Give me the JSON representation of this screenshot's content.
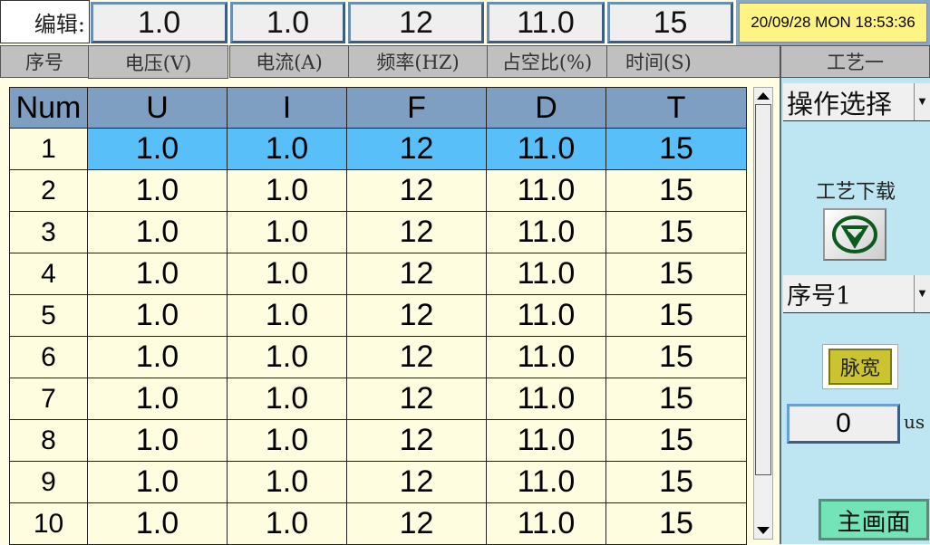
{
  "edit": {
    "label": "编辑:",
    "values": [
      "1.0",
      "1.0",
      "12",
      "11.0",
      "15"
    ]
  },
  "datetime": "20/09/28 MON 18:53:36",
  "headers": {
    "num": "序号",
    "u": "电压(V)",
    "i": "电流(A)",
    "f": "频率(HZ)",
    "d": "占空比(%)",
    "t": "时间(S)",
    "process": "工艺一"
  },
  "table": {
    "columns": [
      "Num",
      "U",
      "I",
      "F",
      "D",
      "T"
    ],
    "rows": [
      [
        "1",
        "1.0",
        "1.0",
        "12",
        "11.0",
        "15"
      ],
      [
        "2",
        "1.0",
        "1.0",
        "12",
        "11.0",
        "15"
      ],
      [
        "3",
        "1.0",
        "1.0",
        "12",
        "11.0",
        "15"
      ],
      [
        "4",
        "1.0",
        "1.0",
        "12",
        "11.0",
        "15"
      ],
      [
        "5",
        "1.0",
        "1.0",
        "12",
        "11.0",
        "15"
      ],
      [
        "6",
        "1.0",
        "1.0",
        "12",
        "11.0",
        "15"
      ],
      [
        "7",
        "1.0",
        "1.0",
        "12",
        "11.0",
        "15"
      ],
      [
        "8",
        "1.0",
        "1.0",
        "12",
        "11.0",
        "15"
      ],
      [
        "9",
        "1.0",
        "1.0",
        "12",
        "11.0",
        "15"
      ],
      [
        "10",
        "1.0",
        "1.0",
        "12",
        "11.0",
        "15"
      ]
    ],
    "selected_row": 1
  },
  "panel": {
    "operation_select": "操作选择",
    "download_label": "工艺下载",
    "download_icon": "download-circle-icon",
    "sequence_select": "序号1",
    "pulse_width_button": "脉宽",
    "pulse_width_value": "0",
    "pulse_width_unit": "us",
    "main_screen_button": "主画面"
  },
  "colors": {
    "selected": "#58bff9",
    "header": "#7f9fc2",
    "panel": "#bde5f2",
    "datetime": "#fff384",
    "main_button": "#72e4b8"
  }
}
